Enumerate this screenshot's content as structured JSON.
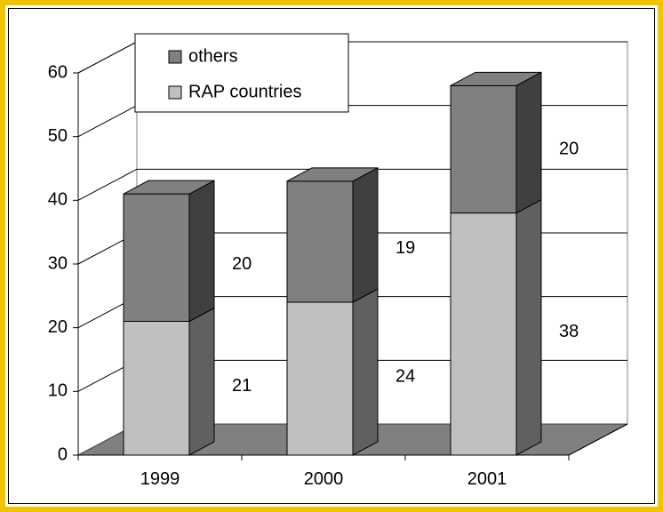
{
  "chart_data": {
    "type": "bar",
    "stacked": true,
    "three_d": true,
    "categories": [
      "1999",
      "2000",
      "2001"
    ],
    "series": [
      {
        "name": "RAP countries",
        "values": [
          21,
          24,
          38
        ],
        "color": "#c0c0c0"
      },
      {
        "name": "others",
        "values": [
          20,
          19,
          20
        ],
        "color": "#808080"
      }
    ],
    "ylim": [
      0,
      60
    ],
    "yticks": [
      "0",
      "10",
      "20",
      "30",
      "40",
      "50",
      "60"
    ],
    "grid": true,
    "legend_position": "top-left",
    "colors": {
      "frame": "#f2c400",
      "floor": "#808080",
      "side_dark": "#404040",
      "side_light": "#606060"
    }
  }
}
